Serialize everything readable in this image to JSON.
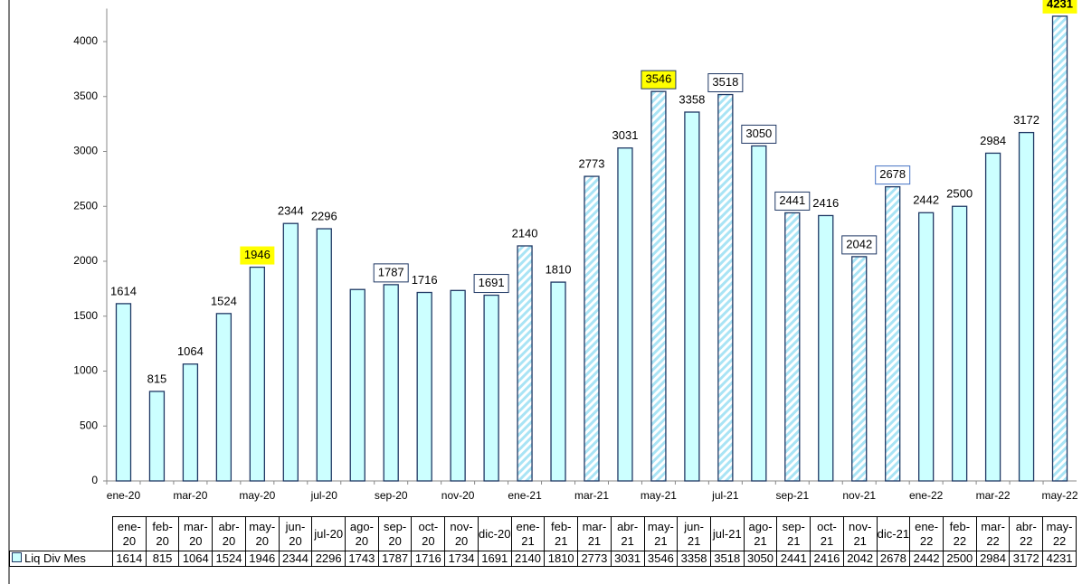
{
  "chart_data": {
    "type": "bar",
    "categories": [
      "ene-20",
      "feb-20",
      "mar-20",
      "abr-20",
      "may-20",
      "jun-20",
      "jul-20",
      "ago-20",
      "sep-20",
      "oct-20",
      "nov-20",
      "dic-20",
      "ene-21",
      "feb-21",
      "mar-21",
      "abr-21",
      "may-21",
      "jun-21",
      "jul-21",
      "ago-21",
      "sep-21",
      "oct-21",
      "nov-21",
      "dic-21",
      "ene-22",
      "feb-22",
      "mar-22",
      "abr-22",
      "may-22"
    ],
    "series": [
      {
        "name": "Liq Div Mes",
        "color": "#ccffff",
        "values": [
          1614,
          815,
          1064,
          1524,
          1946,
          2344,
          2296,
          1743,
          1787,
          1716,
          1734,
          1691,
          2140,
          1810,
          2773,
          3031,
          3546,
          3358,
          3518,
          3050,
          2441,
          2416,
          2042,
          2678,
          2442,
          2500,
          2984,
          3172,
          4231
        ],
        "value_labels": [
          "1614",
          "815",
          "1064",
          "1524",
          "1946",
          "2344",
          "2296",
          null,
          "1787",
          "1716",
          null,
          "1691",
          "2140",
          "1810",
          "2773",
          "3031",
          "3546",
          "3358",
          "3518",
          "3050",
          "2441",
          "2416",
          "2042",
          "2678",
          "2442",
          "2500",
          "2984",
          "3172",
          "4231"
        ]
      }
    ],
    "ylim": [
      0,
      4300
    ],
    "yticks": [
      0,
      500,
      1000,
      1500,
      2000,
      2500,
      3000,
      3500,
      4000
    ],
    "highlighted_labels": [
      4,
      16,
      28
    ],
    "boxed_labels": [
      8,
      11,
      16,
      18,
      19,
      20,
      22,
      23
    ],
    "striped_bars": [
      12,
      14,
      16,
      18,
      20,
      22,
      23,
      28
    ],
    "data_table": true
  }
}
